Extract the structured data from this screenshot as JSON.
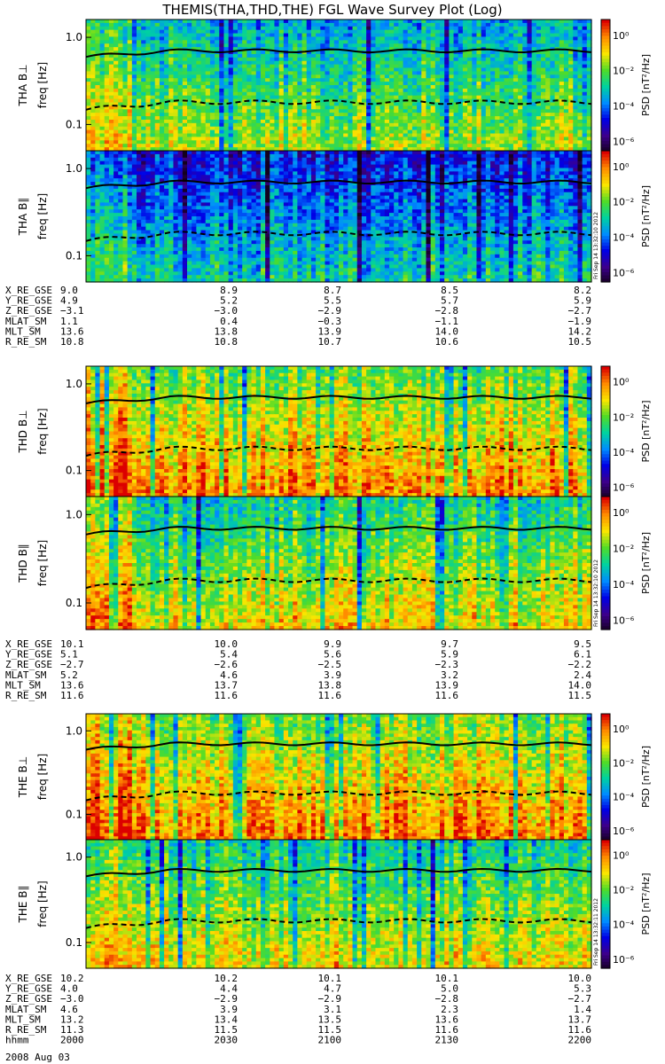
{
  "title": "THEMIS(THA,THD,THE) FGL Wave Survey Plot (Log)",
  "colorbar": {
    "label": "PSD [nT²/Hz]",
    "ticks": [
      "10⁰",
      "10⁻²",
      "10⁻⁴",
      "10⁻⁶"
    ]
  },
  "freq_label": "freq [Hz]",
  "y_ticks": [
    "1.0",
    "0.1"
  ],
  "probes": [
    {
      "name": "THA",
      "panels": [
        {
          "label": "THA B⊥",
          "stamp": ""
        },
        {
          "label": "THA B∥",
          "stamp": "Fri Sep 14 13:32:10 2012"
        }
      ],
      "ephem": [
        {
          "label": "X_RE_GSE",
          "values": [
            "9.0",
            "8.9",
            "8.7",
            "8.5",
            "8.2"
          ]
        },
        {
          "label": "Y_RE_GSE",
          "values": [
            "4.9",
            "5.2",
            "5.5",
            "5.7",
            "5.9"
          ]
        },
        {
          "label": "Z_RE_GSE",
          "values": [
            "−3.1",
            "−3.0",
            "−2.9",
            "−2.8",
            "−2.7"
          ]
        },
        {
          "label": "MLAT_SM",
          "values": [
            "1.1",
            "0.4",
            "−0.3",
            "−1.1",
            "−1.9"
          ]
        },
        {
          "label": "MLT_SM",
          "values": [
            "13.6",
            "13.8",
            "13.9",
            "14.0",
            "14.2"
          ]
        },
        {
          "label": "R_RE_SM",
          "values": [
            "10.8",
            "10.8",
            "10.7",
            "10.6",
            "10.5"
          ]
        }
      ]
    },
    {
      "name": "THD",
      "panels": [
        {
          "label": "THD B⊥",
          "stamp": ""
        },
        {
          "label": "THD B∥",
          "stamp": "Fri Sep 14 13:32:10 2012"
        }
      ],
      "ephem": [
        {
          "label": "X_RE_GSE",
          "values": [
            "10.1",
            "10.0",
            "9.9",
            "9.7",
            "9.5"
          ]
        },
        {
          "label": "Y_RE_GSE",
          "values": [
            "5.1",
            "5.4",
            "5.6",
            "5.9",
            "6.1"
          ]
        },
        {
          "label": "Z_RE_GSE",
          "values": [
            "−2.7",
            "−2.6",
            "−2.5",
            "−2.3",
            "−2.2"
          ]
        },
        {
          "label": "MLAT_SM",
          "values": [
            "5.2",
            "4.6",
            "3.9",
            "3.2",
            "2.4"
          ]
        },
        {
          "label": "MLT_SM",
          "values": [
            "13.6",
            "13.7",
            "13.8",
            "13.9",
            "14.0"
          ]
        },
        {
          "label": "R_RE_SM",
          "values": [
            "11.6",
            "11.6",
            "11.6",
            "11.6",
            "11.5"
          ]
        }
      ]
    },
    {
      "name": "THE",
      "panels": [
        {
          "label": "THE B⊥",
          "stamp": ""
        },
        {
          "label": "THE B∥",
          "stamp": "Fri Sep 14 13:32:11 2012"
        }
      ],
      "ephem": [
        {
          "label": "X_RE_GSE",
          "values": [
            "10.2",
            "10.2",
            "10.1",
            "10.1",
            "10.0"
          ]
        },
        {
          "label": "Y_RE_GSE",
          "values": [
            "4.0",
            "4.4",
            "4.7",
            "5.0",
            "5.3"
          ]
        },
        {
          "label": "Z_RE_GSE",
          "values": [
            "−3.0",
            "−2.9",
            "−2.9",
            "−2.8",
            "−2.7"
          ]
        },
        {
          "label": "MLAT_SM",
          "values": [
            "4.6",
            "3.9",
            "3.1",
            "2.3",
            "1.4"
          ]
        },
        {
          "label": "MLT_SM",
          "values": [
            "13.2",
            "13.4",
            "13.5",
            "13.6",
            "13.7"
          ]
        },
        {
          "label": "R_RE_SM",
          "values": [
            "11.3",
            "11.5",
            "11.5",
            "11.6",
            "11.6"
          ]
        },
        {
          "label": "hhmm",
          "values": [
            "2000",
            "2030",
            "2100",
            "2130",
            "2200"
          ]
        }
      ]
    }
  ],
  "date": "2008 Aug 03",
  "chart_data": {
    "type": "heatmap",
    "title": "THEMIS(THA,THD,THE) FGL Wave Survey Plot (Log)",
    "xlabel": "hhmm",
    "x_ticks": [
      "2000",
      "2030",
      "2100",
      "2130",
      "2200"
    ],
    "ylabel": "freq [Hz]",
    "y_scale": "log",
    "y_ticks": [
      1.0,
      0.1
    ],
    "ylim": [
      0.05,
      1.6
    ],
    "colorbar_label": "PSD [nT²/Hz]",
    "color_scale": "log",
    "clim": [
      1e-07,
      10
    ],
    "series": [
      {
        "name": "THA B⊥",
        "median_log_psd": -2.5,
        "solid_line_hz": 0.7,
        "dashed_line_hz": 0.18
      },
      {
        "name": "THA B∥",
        "median_log_psd": -4.0,
        "solid_line_hz": 0.7,
        "dashed_line_hz": 0.18
      },
      {
        "name": "THD B⊥",
        "median_log_psd": -1.0,
        "solid_line_hz": 0.7,
        "dashed_line_hz": 0.18
      },
      {
        "name": "THD B∥",
        "median_log_psd": -1.8,
        "solid_line_hz": 0.7,
        "dashed_line_hz": 0.18
      },
      {
        "name": "THE B⊥",
        "median_log_psd": -0.9,
        "solid_line_hz": 0.7,
        "dashed_line_hz": 0.18
      },
      {
        "name": "THE B∥",
        "median_log_psd": -1.9,
        "solid_line_hz": 0.7,
        "dashed_line_hz": 0.18
      }
    ]
  }
}
